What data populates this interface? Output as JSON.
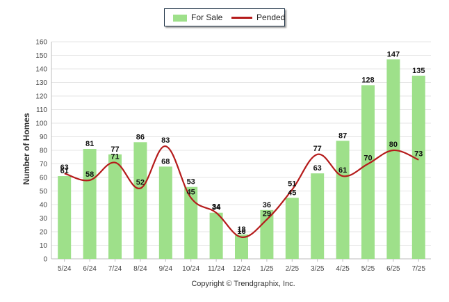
{
  "legend": {
    "for_sale_label": "For Sale",
    "pended_label": "Pended"
  },
  "footer": {
    "copyright": "Copyright © Trendgraphix, Inc."
  },
  "chart_data": {
    "type": "bar",
    "categories": [
      "5/24",
      "6/24",
      "7/24",
      "8/24",
      "9/24",
      "10/24",
      "11/24",
      "12/24",
      "1/25",
      "2/25",
      "3/25",
      "4/25",
      "5/25",
      "6/25",
      "7/25"
    ],
    "series": [
      {
        "name": "For Sale",
        "type": "bar",
        "color": "#9ee08a",
        "values": [
          61,
          81,
          77,
          86,
          68,
          53,
          34,
          18,
          36,
          45,
          63,
          87,
          128,
          147,
          135
        ]
      },
      {
        "name": "Pended",
        "type": "line",
        "color": "#b51b1b",
        "values": [
          63,
          58,
          71,
          52,
          83,
          45,
          34,
          16,
          29,
          51,
          77,
          61,
          70,
          80,
          73
        ]
      }
    ],
    "ylabel": "Number of Homes",
    "ylim": [
      0,
      160
    ],
    "yticks": [
      0,
      10,
      20,
      30,
      40,
      50,
      60,
      70,
      80,
      90,
      100,
      110,
      120,
      130,
      140,
      150,
      160
    ],
    "grid": true,
    "legend_position": "top-center"
  }
}
